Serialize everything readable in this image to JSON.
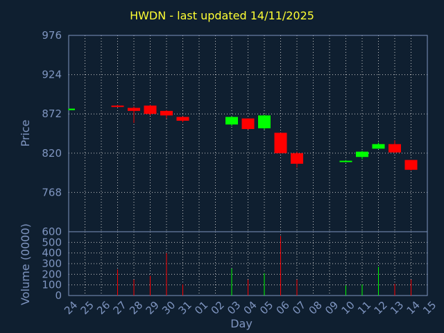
{
  "chart_data": {
    "type": "candlestick",
    "title": "HWDN - last updated 14/11/2025",
    "price_label": "Price",
    "volume_label": "Volume (0000)",
    "xlabel": "Day",
    "x_ticks": [
      "24",
      "25",
      "26",
      "27",
      "28",
      "29",
      "30",
      "31",
      "01",
      "02",
      "03",
      "04",
      "05",
      "06",
      "07",
      "08",
      "09",
      "10",
      "11",
      "12",
      "13",
      "14",
      "15"
    ],
    "price_ylim": [
      716,
      976
    ],
    "price_ticks": [
      976,
      924,
      872,
      820,
      768
    ],
    "volume_ylim": [
      0,
      600
    ],
    "volume_ticks": [
      600,
      500,
      400,
      300,
      200,
      100,
      0
    ],
    "candles": [
      {
        "day": "24",
        "open": 877,
        "high": 879,
        "low": 877,
        "close": 879,
        "volume": 0
      },
      {
        "day": "27",
        "open": 883,
        "high": 884,
        "low": 881,
        "close": 882,
        "volume": 245
      },
      {
        "day": "28",
        "open": 880,
        "high": 882,
        "low": 860,
        "close": 876,
        "volume": 150
      },
      {
        "day": "29",
        "open": 883,
        "high": 884,
        "low": 870,
        "close": 872,
        "volume": 185
      },
      {
        "day": "30",
        "open": 876,
        "high": 877,
        "low": 866,
        "close": 870,
        "volume": 400
      },
      {
        "day": "31",
        "open": 868,
        "high": 869,
        "low": 861,
        "close": 863,
        "volume": 105
      },
      {
        "day": "03",
        "open": 858,
        "high": 869,
        "low": 856,
        "close": 868,
        "volume": 255
      },
      {
        "day": "04",
        "open": 866,
        "high": 866,
        "low": 851,
        "close": 852,
        "volume": 150
      },
      {
        "day": "05",
        "open": 853,
        "high": 871,
        "low": 851,
        "close": 870,
        "volume": 210
      },
      {
        "day": "06",
        "open": 847,
        "high": 847,
        "low": 820,
        "close": 820,
        "volume": 560
      },
      {
        "day": "07",
        "open": 820,
        "high": 822,
        "low": 801,
        "close": 806,
        "volume": 150
      },
      {
        "day": "10",
        "open": 809,
        "high": 811,
        "low": 808,
        "close": 810,
        "volume": 95
      },
      {
        "day": "11",
        "open": 815,
        "high": 823,
        "low": 812,
        "close": 822,
        "volume": 105
      },
      {
        "day": "12",
        "open": 826,
        "high": 834,
        "low": 826,
        "close": 832,
        "volume": 270
      },
      {
        "day": "13",
        "open": 832,
        "high": 837,
        "low": 820,
        "close": 821,
        "volume": 110
      },
      {
        "day": "14",
        "open": 811,
        "high": 811,
        "low": 797,
        "close": 798,
        "volume": 150
      }
    ],
    "colors": {
      "up": "#00ff00",
      "down": "#ff0000",
      "grid": "#c8c8c8",
      "axis": "#7f95c0",
      "title": "#ffff33",
      "background": "#0f1f30"
    }
  }
}
